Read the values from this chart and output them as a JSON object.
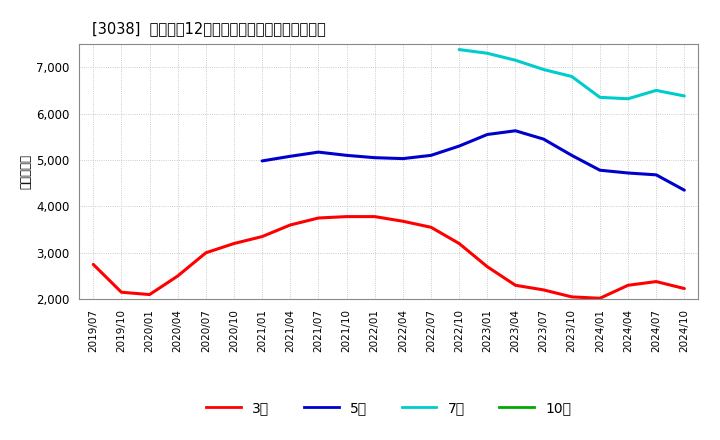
{
  "title": "[3038]  経常利益12か月移動合計の標準偏差の推移",
  "ylabel": "（百万円）",
  "background_color": "#ffffff",
  "plot_bg_color": "#ffffff",
  "grid_color": "#aaaaaa",
  "x_labels": [
    "2019/07",
    "2019/10",
    "2020/01",
    "2020/04",
    "2020/07",
    "2020/10",
    "2021/01",
    "2021/04",
    "2021/07",
    "2021/10",
    "2022/01",
    "2022/04",
    "2022/07",
    "2022/10",
    "2023/01",
    "2023/04",
    "2023/07",
    "2023/10",
    "2024/01",
    "2024/04",
    "2024/07",
    "2024/10"
  ],
  "series_3y": {
    "label": "3年",
    "color": "#ff0000",
    "values": [
      2750,
      2150,
      2100,
      2500,
      3000,
      3200,
      3350,
      3600,
      3750,
      3780,
      3780,
      3680,
      3550,
      3200,
      2700,
      2300,
      2200,
      2050,
      2020,
      2300,
      2380,
      2230
    ]
  },
  "series_5y": {
    "label": "5年",
    "color": "#0000cc",
    "values": [
      null,
      null,
      null,
      null,
      null,
      null,
      4980,
      5080,
      5170,
      5100,
      5050,
      5030,
      5100,
      5300,
      5550,
      5630,
      5450,
      5100,
      4780,
      4720,
      4680,
      4350
    ]
  },
  "series_7y": {
    "label": "7年",
    "color": "#00cccc",
    "values": [
      null,
      null,
      null,
      null,
      null,
      null,
      null,
      null,
      null,
      null,
      null,
      null,
      null,
      7380,
      7300,
      7150,
      6950,
      6800,
      6350,
      6320,
      6500,
      6380
    ]
  },
  "series_10y": {
    "label": "10年",
    "color": "#00aa00",
    "values": [
      null,
      null,
      null,
      null,
      null,
      null,
      null,
      null,
      null,
      null,
      null,
      null,
      null,
      null,
      null,
      null,
      null,
      null,
      null,
      null,
      null,
      null
    ]
  },
  "ylim": [
    2000,
    7500
  ],
  "yticks": [
    2000,
    3000,
    4000,
    5000,
    6000,
    7000
  ],
  "line_width": 2.2
}
